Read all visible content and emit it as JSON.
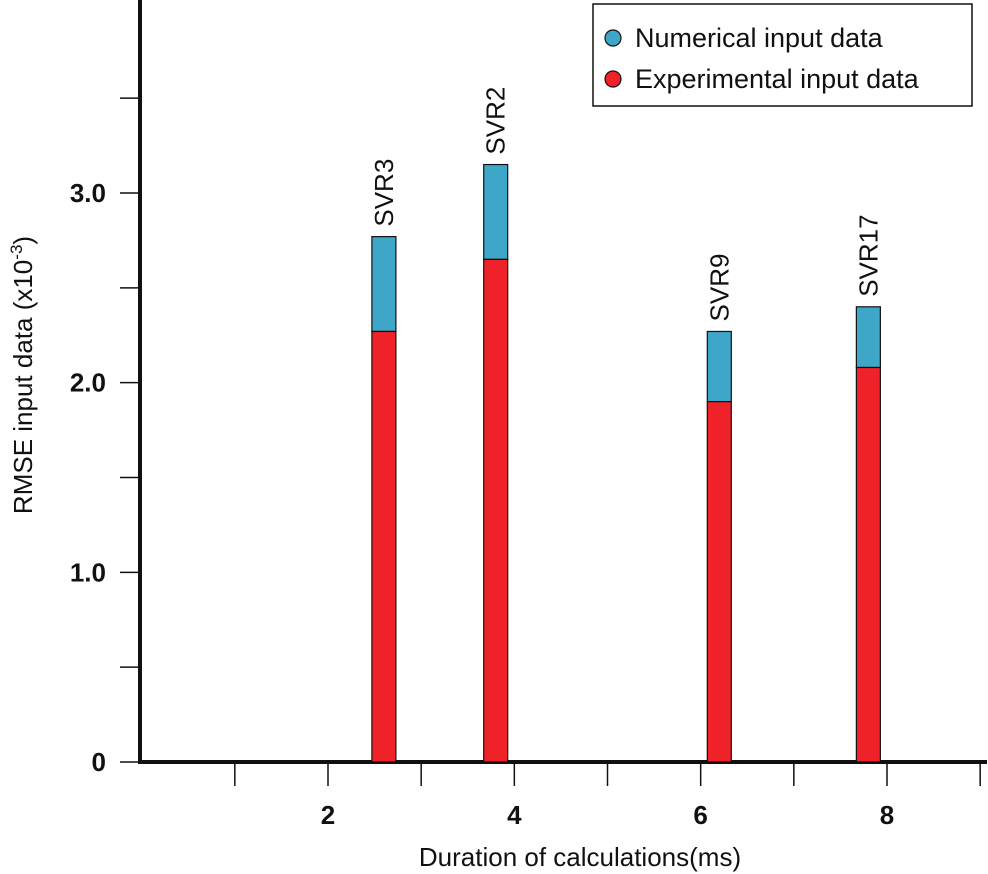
{
  "chart_data": {
    "type": "bar",
    "stacked": true,
    "xlabel": "Duration of calculations(ms)",
    "ylabel_main": "RMSE input data (x10",
    "ylabel_exp": "-3",
    "ylabel_close": ")",
    "xlim": [
      0,
      9
    ],
    "ylim": [
      0,
      4.0
    ],
    "x_major_ticks": [
      2,
      4,
      6,
      8
    ],
    "x_major_tick_labels": [
      "2",
      "4",
      "6",
      "8"
    ],
    "x_minor_ticks": [
      1,
      3,
      5,
      7,
      9
    ],
    "y_major_ticks": [
      0,
      1.0,
      2.0,
      3.0
    ],
    "y_major_tick_labels": [
      "0",
      "1.0",
      "2.0",
      "3.0"
    ],
    "y_minor_ticks": [
      0.5,
      1.5,
      2.5,
      3.5
    ],
    "series": [
      {
        "name": "Experimental input data",
        "color": "#ee2228"
      },
      {
        "name": "Numerical input data",
        "color": "#3ea6c7"
      }
    ],
    "bars": [
      {
        "label": "SVR3",
        "x": 2.6,
        "experimental": 2.27,
        "total": 2.77
      },
      {
        "label": "SVR2",
        "x": 3.8,
        "experimental": 2.65,
        "total": 3.15
      },
      {
        "label": "SVR9",
        "x": 6.2,
        "experimental": 1.9,
        "total": 2.27
      },
      {
        "label": "SVR17",
        "x": 7.8,
        "experimental": 2.08,
        "total": 2.4
      }
    ],
    "legend": {
      "placement": "top-right",
      "items": [
        {
          "label": "Numerical input data",
          "color": "#3ea6c7"
        },
        {
          "label": "Experimental input data",
          "color": "#ee2228"
        }
      ]
    }
  }
}
